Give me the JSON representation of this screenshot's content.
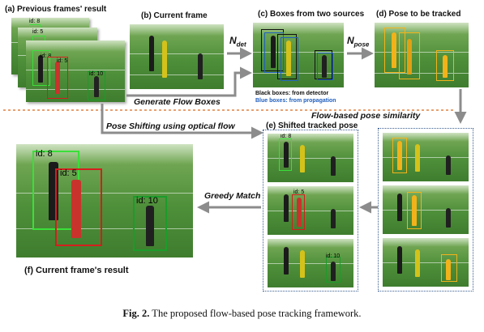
{
  "labels": {
    "a": "(a) Previous frames' result",
    "b": "(b) Current frame",
    "c": "(c) Boxes from two sources",
    "d": "(d) Pose  to be tracked",
    "e": "(e) Shifted tracked pose",
    "f": "(f) Current frame's result"
  },
  "arrows": {
    "n_det_base": "N",
    "n_det_sub": "det",
    "n_pose_base": "N",
    "n_pose_sub": "pose",
    "generate_flow": "Generate Flow Boxes",
    "flow_similarity": "Flow-based pose similarity",
    "pose_shifting": "Pose Shifting using optical flow",
    "greedy_match": "Greedy Match"
  },
  "legend": {
    "black": "Black boxes: from detector",
    "blue": "Blue boxes: from propagation",
    "black_color": "#111111",
    "blue_color": "#1f5fbf"
  },
  "ids": {
    "id8": "id: 8",
    "id5": "id: 5",
    "id10": "id: 10",
    "big8": "id: 8",
    "big5": "id: 5",
    "big10": "id: 10",
    "small_a1": "id: 8",
    "small_a2": "id: 5",
    "small_a3": "id: 10",
    "e1": "id: 8",
    "e2": "id: 5",
    "e3": "id: 10"
  },
  "caption": {
    "figno": "Fig. 2.",
    "text": " The proposed flow-based pose tracking framework."
  },
  "colors": {
    "id8": "#3adf3a",
    "id5": "#d41e1e",
    "id10": "#1b9c2a",
    "pose_yellow": "#f2b21a",
    "dashed_border": "#3b5f8f",
    "arrow": "#8c8c8c",
    "separator": "#e8a070"
  }
}
